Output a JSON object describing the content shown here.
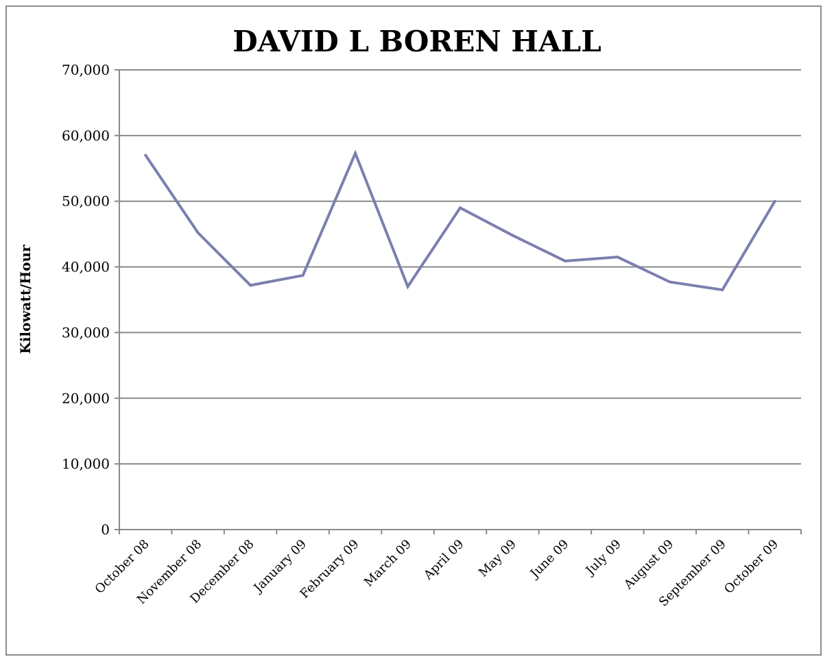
{
  "chart_data": {
    "type": "line",
    "title": "DAVID L BOREN HALL",
    "xlabel": "",
    "ylabel": "Kilowatt/Hour",
    "ylim": [
      0,
      70000
    ],
    "yticks": [
      0,
      10000,
      20000,
      30000,
      40000,
      50000,
      60000,
      70000
    ],
    "ytick_labels": [
      "0",
      "10,000",
      "20,000",
      "30,000",
      "40,000",
      "50,000",
      "60,000",
      "70,000"
    ],
    "grid": true,
    "legend": "none",
    "categories": [
      "October 08",
      "November 08",
      "December 08",
      "January 09",
      "February 09",
      "March 09",
      "April 09",
      "May 09",
      "June 09",
      "July 09",
      "August 09",
      "September 09",
      "October 09"
    ],
    "series": [
      {
        "values": [
          57000,
          45200,
          37200,
          38700,
          57300,
          37000,
          49000,
          44800,
          40900,
          41500,
          37700,
          36500,
          50000
        ],
        "color": "#7b7faf"
      }
    ]
  }
}
